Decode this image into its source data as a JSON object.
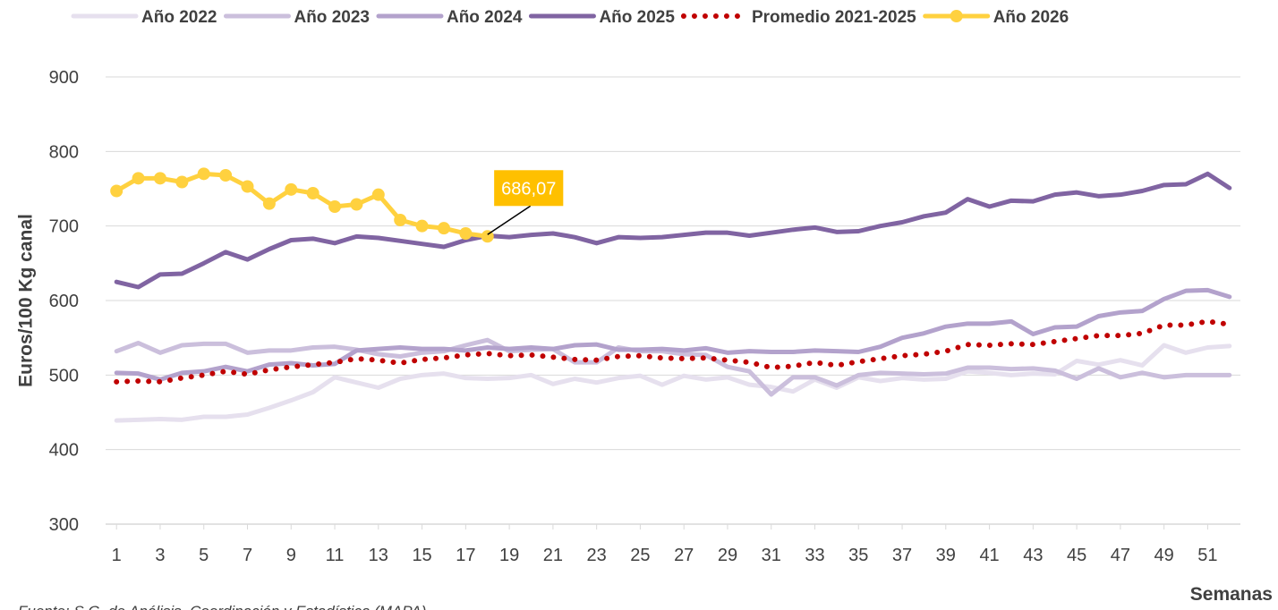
{
  "chart_data": {
    "type": "line",
    "y_label": "Euros/100 Kg canal",
    "x_label": "Semanas",
    "source": "Fuente: S.G. de Análisis, Coordinación y Estadística (MAPA)",
    "x": [
      1,
      2,
      3,
      4,
      5,
      6,
      7,
      8,
      9,
      10,
      11,
      12,
      13,
      14,
      15,
      16,
      17,
      18,
      19,
      20,
      21,
      22,
      23,
      24,
      25,
      26,
      27,
      28,
      29,
      30,
      31,
      32,
      33,
      34,
      35,
      36,
      37,
      38,
      39,
      40,
      41,
      42,
      43,
      44,
      45,
      46,
      47,
      48,
      49,
      50,
      51,
      52
    ],
    "xlim": [
      0.5,
      52.5
    ],
    "xticks": [
      1,
      3,
      5,
      7,
      9,
      11,
      13,
      15,
      17,
      19,
      21,
      23,
      25,
      27,
      29,
      31,
      33,
      35,
      37,
      39,
      41,
      43,
      45,
      47,
      49,
      51
    ],
    "ylim": [
      300,
      900
    ],
    "yticks": [
      300,
      400,
      500,
      600,
      700,
      800,
      900
    ],
    "grid": true,
    "legend": "top",
    "series": [
      {
        "name": "Año 2022",
        "color": "#e6e0ee",
        "style": "solid",
        "values": [
          439,
          440,
          441,
          440,
          444,
          444,
          447,
          456,
          466,
          477,
          497,
          490,
          483,
          495,
          500,
          502,
          496,
          495,
          496,
          500,
          488,
          495,
          490,
          496,
          499,
          487,
          499,
          494,
          497,
          487,
          484,
          478,
          494,
          483,
          497,
          492,
          496,
          494,
          495,
          505,
          503,
          500,
          502,
          501,
          519,
          514,
          520,
          513,
          540,
          530,
          537,
          539
        ]
      },
      {
        "name": "Año 2023",
        "color": "#cbbfdc",
        "style": "solid",
        "values": [
          532,
          543,
          530,
          540,
          542,
          542,
          530,
          533,
          533,
          537,
          538,
          534,
          528,
          525,
          530,
          532,
          540,
          547,
          532,
          534,
          535,
          517,
          517,
          537,
          532,
          532,
          528,
          527,
          511,
          505,
          474,
          497,
          497,
          486,
          500,
          503,
          502,
          501,
          502,
          510,
          510,
          508,
          509,
          506,
          495,
          509,
          497,
          503,
          497,
          500,
          500,
          500
        ]
      },
      {
        "name": "Año 2024",
        "color": "#b3a2cc",
        "style": "solid",
        "values": [
          503,
          502,
          494,
          503,
          505,
          511,
          505,
          514,
          516,
          513,
          515,
          533,
          535,
          537,
          535,
          535,
          533,
          537,
          535,
          537,
          535,
          540,
          541,
          534,
          534,
          535,
          533,
          536,
          530,
          532,
          531,
          531,
          533,
          532,
          531,
          538,
          550,
          556,
          565,
          569,
          569,
          572,
          555,
          564,
          565,
          579,
          584,
          586,
          602,
          613,
          614,
          605
        ]
      },
      {
        "name": "Año 2025",
        "color": "#8064a2",
        "style": "solid",
        "values": [
          625,
          618,
          635,
          636,
          650,
          665,
          655,
          669,
          681,
          683,
          677,
          686,
          684,
          680,
          676,
          672,
          681,
          687,
          685,
          688,
          690,
          685,
          677,
          685,
          684,
          685,
          688,
          691,
          691,
          687,
          691,
          695,
          698,
          692,
          693,
          700,
          705,
          713,
          718,
          736,
          726,
          734,
          733,
          742,
          745,
          740,
          742,
          747,
          755,
          756,
          770,
          751
        ]
      },
      {
        "name": "Promedio 2021-2025",
        "color": "#c00000",
        "style": "dotted",
        "values": [
          491,
          492,
          491,
          496,
          500,
          505,
          501,
          507,
          511,
          514,
          517,
          522,
          520,
          516,
          521,
          523,
          527,
          529,
          526,
          527,
          524,
          521,
          520,
          525,
          526,
          523,
          522,
          523,
          520,
          517,
          510,
          512,
          517,
          513,
          518,
          522,
          526,
          528,
          532,
          541,
          540,
          542,
          541,
          545,
          549,
          553,
          553,
          556,
          567,
          567,
          572,
          568
        ]
      },
      {
        "name": "Año 2026",
        "color": "#ffd13f",
        "style": "marker",
        "values": [
          747,
          764,
          764,
          759,
          770,
          768,
          753,
          730,
          749,
          744,
          726,
          729,
          742,
          708,
          700,
          697,
          690,
          686.07,
          null,
          null,
          null,
          null,
          null,
          null,
          null,
          null,
          null,
          null,
          null,
          null,
          null,
          null,
          null,
          null,
          null,
          null,
          null,
          null,
          null,
          null,
          null,
          null,
          null,
          null,
          null,
          null,
          null,
          null,
          null,
          null,
          null,
          null
        ],
        "value_labels": [
          null,
          null,
          null,
          null,
          null,
          null,
          null,
          null,
          null,
          null,
          null,
          null,
          null,
          null,
          null,
          null,
          null,
          "686,07",
          null,
          null,
          null,
          null,
          null,
          null,
          null,
          null,
          null,
          null,
          null,
          null,
          null,
          null,
          null,
          null,
          null,
          null,
          null,
          null,
          null,
          null,
          null,
          null,
          null,
          null,
          null,
          null,
          null,
          null,
          null,
          null,
          null,
          null
        ]
      }
    ]
  }
}
